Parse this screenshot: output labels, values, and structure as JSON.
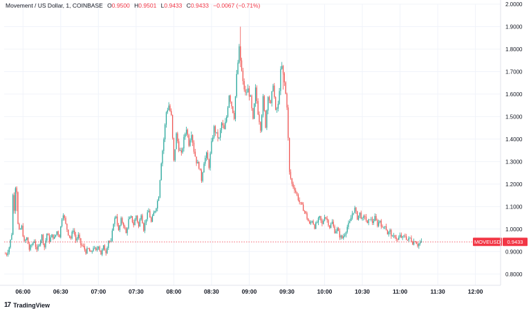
{
  "header": {
    "symbol": "Movement / US Dollar, 1, COINBASE",
    "o_label": "O",
    "o_value": "0.9500",
    "h_label": "H",
    "h_value": "0.9501",
    "l_label": "L",
    "l_value": "0.9433",
    "c_label": "C",
    "c_value": "0.9433",
    "change": "−0.0067 (−0.71%)"
  },
  "footer": {
    "icon": "tradingview-logo-icon",
    "brand": "TradingView"
  },
  "colors": {
    "up": "#26a69a",
    "down": "#ef5350",
    "price_line": "#f23645",
    "grid": "#f0f3fa",
    "axis_text": "#131722"
  },
  "chart_data": {
    "type": "candlestick",
    "symbol_label": "MOVEUSD",
    "last_price": 0.9433,
    "last_price_label": "0.9433",
    "ylim": [
      0.75,
      2.0
    ],
    "y_ticks": [
      "0.8000",
      "0.9000",
      "1.0000",
      "1.1000",
      "1.2000",
      "1.3000",
      "1.4000",
      "1.5000",
      "1.6000",
      "1.7000",
      "1.8000",
      "1.9000",
      "2.0000"
    ],
    "y_tick_values": [
      0.8,
      0.9,
      1.0,
      1.1,
      1.2,
      1.3,
      1.4,
      1.5,
      1.6,
      1.7,
      1.8,
      1.9,
      2.0
    ],
    "x_start": "05:45",
    "x_end": "12:20",
    "x_ticks": [
      "06:00",
      "06:30",
      "07:00",
      "07:30",
      "08:00",
      "08:30",
      "09:00",
      "09:30",
      "10:00",
      "10:30",
      "11:00",
      "11:30",
      "12:00"
    ],
    "x_tick_minutes": [
      360,
      390,
      420,
      450,
      480,
      510,
      540,
      570,
      600,
      630,
      660,
      690,
      720
    ],
    "x_range_minutes": [
      345,
      740
    ],
    "price_path": [
      [
        346,
        0.89
      ],
      [
        348,
        0.89
      ],
      [
        350,
        0.92
      ],
      [
        352,
        0.98
      ],
      [
        353,
        1.15
      ],
      [
        354,
        1.09
      ],
      [
        355,
        1.19
      ],
      [
        356,
        1.17
      ],
      [
        357,
        1.02
      ],
      [
        358,
        0.99
      ],
      [
        360,
        1.01
      ],
      [
        362,
        0.94
      ],
      [
        364,
        0.96
      ],
      [
        366,
        0.91
      ],
      [
        368,
        0.93
      ],
      [
        370,
        0.95
      ],
      [
        372,
        0.9
      ],
      [
        374,
        0.94
      ],
      [
        376,
        0.97
      ],
      [
        378,
        0.92
      ],
      [
        380,
        0.98
      ],
      [
        382,
        0.95
      ],
      [
        384,
        0.97
      ],
      [
        386,
        0.96
      ],
      [
        388,
        0.99
      ],
      [
        390,
        0.97
      ],
      [
        392,
        1.05
      ],
      [
        393,
        1.07
      ],
      [
        395,
        1.02
      ],
      [
        397,
        0.98
      ],
      [
        399,
        0.96
      ],
      [
        401,
        1.0
      ],
      [
        403,
        0.95
      ],
      [
        405,
        0.97
      ],
      [
        407,
        0.93
      ],
      [
        409,
        0.92
      ],
      [
        411,
        0.9
      ],
      [
        413,
        0.91
      ],
      [
        415,
        0.89
      ],
      [
        417,
        0.92
      ],
      [
        419,
        0.9
      ],
      [
        421,
        0.93
      ],
      [
        423,
        0.89
      ],
      [
        425,
        0.92
      ],
      [
        427,
        0.9
      ],
      [
        429,
        0.95
      ],
      [
        431,
        0.94
      ],
      [
        433,
        1.03
      ],
      [
        435,
        1.06
      ],
      [
        437,
        0.99
      ],
      [
        439,
        1.04
      ],
      [
        441,
        1.02
      ],
      [
        443,
        0.98
      ],
      [
        445,
        1.04
      ],
      [
        447,
        1.05
      ],
      [
        449,
        1.02
      ],
      [
        451,
        1.06
      ],
      [
        453,
        1.01
      ],
      [
        455,
        1.07
      ],
      [
        457,
        1.0
      ],
      [
        459,
        1.05
      ],
      [
        461,
        1.08
      ],
      [
        463,
        1.03
      ],
      [
        465,
        1.07
      ],
      [
        467,
        1.1
      ],
      [
        469,
        1.15
      ],
      [
        471,
        1.3
      ],
      [
        473,
        1.4
      ],
      [
        475,
        1.52
      ],
      [
        477,
        1.55
      ],
      [
        479,
        1.5
      ],
      [
        481,
        1.3
      ],
      [
        483,
        1.42
      ],
      [
        485,
        1.36
      ],
      [
        487,
        1.33
      ],
      [
        489,
        1.4
      ],
      [
        491,
        1.45
      ],
      [
        493,
        1.38
      ],
      [
        495,
        1.43
      ],
      [
        497,
        1.35
      ],
      [
        499,
        1.3
      ],
      [
        501,
        1.28
      ],
      [
        503,
        1.22
      ],
      [
        505,
        1.3
      ],
      [
        507,
        1.33
      ],
      [
        509,
        1.28
      ],
      [
        511,
        1.38
      ],
      [
        513,
        1.45
      ],
      [
        515,
        1.42
      ],
      [
        517,
        1.4
      ],
      [
        519,
        1.47
      ],
      [
        521,
        1.44
      ],
      [
        523,
        1.5
      ],
      [
        525,
        1.6
      ],
      [
        527,
        1.55
      ],
      [
        529,
        1.5
      ],
      [
        531,
        1.68
      ],
      [
        533,
        1.8
      ],
      [
        534,
        1.75
      ],
      [
        536,
        1.65
      ],
      [
        538,
        1.6
      ],
      [
        540,
        1.62
      ],
      [
        542,
        1.58
      ],
      [
        544,
        1.48
      ],
      [
        546,
        1.62
      ],
      [
        548,
        1.52
      ],
      [
        550,
        1.45
      ],
      [
        552,
        1.58
      ],
      [
        554,
        1.46
      ],
      [
        556,
        1.6
      ],
      [
        558,
        1.55
      ],
      [
        560,
        1.65
      ],
      [
        562,
        1.52
      ],
      [
        564,
        1.55
      ],
      [
        566,
        1.7
      ],
      [
        567,
        1.72
      ],
      [
        569,
        1.65
      ],
      [
        571,
        1.55
      ],
      [
        573,
        1.25
      ],
      [
        575,
        1.2
      ],
      [
        577,
        1.18
      ],
      [
        579,
        1.15
      ],
      [
        581,
        1.12
      ],
      [
        583,
        1.1
      ],
      [
        585,
        1.08
      ],
      [
        587,
        1.05
      ],
      [
        589,
        1.02
      ],
      [
        591,
        1.04
      ],
      [
        593,
        1.01
      ],
      [
        595,
        1.03
      ],
      [
        597,
        1.05
      ],
      [
        599,
        1.02
      ],
      [
        601,
        1.06
      ],
      [
        603,
        1.04
      ],
      [
        605,
        1.01
      ],
      [
        607,
        1.03
      ],
      [
        609,
        0.99
      ],
      [
        611,
        1.0
      ],
      [
        613,
        0.97
      ],
      [
        615,
        0.96
      ],
      [
        617,
        0.98
      ],
      [
        619,
        1.01
      ],
      [
        621,
        1.03
      ],
      [
        623,
        1.07
      ],
      [
        625,
        1.09
      ],
      [
        627,
        1.05
      ],
      [
        629,
        1.07
      ],
      [
        631,
        1.04
      ],
      [
        633,
        1.06
      ],
      [
        635,
        1.02
      ],
      [
        637,
        1.05
      ],
      [
        639,
        1.03
      ],
      [
        641,
        1.05
      ],
      [
        643,
        1.02
      ],
      [
        645,
        1.04
      ],
      [
        647,
        1.0
      ],
      [
        649,
        1.02
      ],
      [
        651,
        0.98
      ],
      [
        653,
        0.99
      ],
      [
        655,
        0.96
      ],
      [
        657,
        0.97
      ],
      [
        659,
        0.95
      ],
      [
        661,
        0.97
      ],
      [
        663,
        0.96
      ],
      [
        665,
        0.97
      ],
      [
        667,
        0.95
      ],
      [
        669,
        0.96
      ],
      [
        671,
        0.94
      ],
      [
        673,
        0.95
      ],
      [
        675,
        0.93
      ],
      [
        677,
        0.94
      ]
    ]
  }
}
